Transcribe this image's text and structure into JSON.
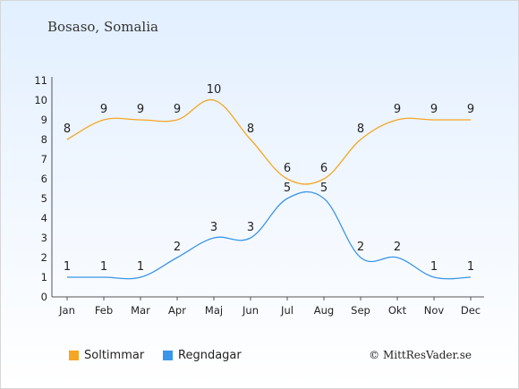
{
  "title": "Bosaso, Somalia",
  "credit": "© MittResVader.se",
  "chart_data": {
    "type": "line",
    "categories": [
      "Jan",
      "Feb",
      "Mar",
      "Apr",
      "Maj",
      "Jun",
      "Jul",
      "Aug",
      "Sep",
      "Okt",
      "Nov",
      "Dec"
    ],
    "ylim": [
      0,
      11
    ],
    "yticks": [
      0,
      1,
      2,
      3,
      4,
      5,
      6,
      7,
      8,
      9,
      10,
      11
    ],
    "grid": false,
    "legend_position": "bottom",
    "series": [
      {
        "name": "Soltimmar",
        "color": "#f5a623",
        "values": [
          8,
          9,
          9,
          9,
          10,
          8,
          6,
          6,
          8,
          9,
          9,
          9
        ]
      },
      {
        "name": "Regndagar",
        "color": "#3a96e8",
        "values": [
          1,
          1,
          1,
          2,
          3,
          3,
          5,
          5,
          2,
          2,
          1,
          1
        ]
      }
    ]
  }
}
